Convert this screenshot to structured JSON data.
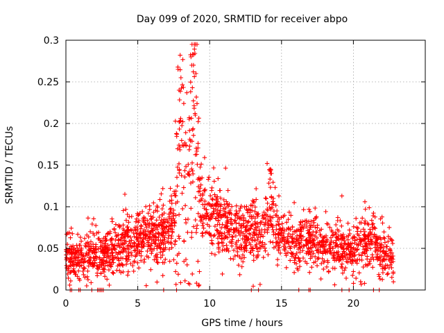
{
  "chart_data": {
    "type": "scatter",
    "title": "Day 099 of 2020, SRMTID for receiver abpo",
    "xlabel": "GPS time / hours",
    "ylabel": "SRMTID / TECUs",
    "xlim": [
      0,
      25
    ],
    "ylim": [
      0,
      0.3
    ],
    "xticks": [
      0,
      5,
      10,
      15,
      20
    ],
    "xtick_labels": [
      "0",
      "5",
      "10",
      "15",
      "20"
    ],
    "yticks": [
      0,
      0.05,
      0.1,
      0.15,
      0.2,
      0.25,
      0.3
    ],
    "ytick_labels": [
      "0",
      "0.05",
      "0.1",
      "0.15",
      "0.2",
      "0.25",
      "0.3"
    ],
    "grid": true,
    "marker": "+",
    "color": "#ff0000",
    "x_max_data": 22.8,
    "series": [
      {
        "name": "SRMTID",
        "trend": [
          [
            0.0,
            0.04
          ],
          [
            0.5,
            0.035
          ],
          [
            1.0,
            0.038
          ],
          [
            1.5,
            0.042
          ],
          [
            2.0,
            0.045
          ],
          [
            2.5,
            0.04
          ],
          [
            3.0,
            0.05
          ],
          [
            3.5,
            0.048
          ],
          [
            4.0,
            0.055
          ],
          [
            4.5,
            0.058
          ],
          [
            5.0,
            0.06
          ],
          [
            5.5,
            0.065
          ],
          [
            6.0,
            0.063
          ],
          [
            6.5,
            0.065
          ],
          [
            7.0,
            0.068
          ],
          [
            7.5,
            0.09
          ],
          [
            7.8,
            0.13
          ],
          [
            8.0,
            0.2
          ],
          [
            8.3,
            0.13
          ],
          [
            8.5,
            0.13
          ],
          [
            8.8,
            0.18
          ],
          [
            9.0,
            0.2
          ],
          [
            9.2,
            0.12
          ],
          [
            9.5,
            0.1
          ],
          [
            10.0,
            0.09
          ],
          [
            10.5,
            0.085
          ],
          [
            11.0,
            0.08
          ],
          [
            11.5,
            0.075
          ],
          [
            12.0,
            0.072
          ],
          [
            12.5,
            0.07
          ],
          [
            13.0,
            0.075
          ],
          [
            13.5,
            0.072
          ],
          [
            14.0,
            0.08
          ],
          [
            14.2,
            0.1
          ],
          [
            14.5,
            0.075
          ],
          [
            15.0,
            0.065
          ],
          [
            15.5,
            0.06
          ],
          [
            16.0,
            0.06
          ],
          [
            16.5,
            0.062
          ],
          [
            17.0,
            0.06
          ],
          [
            17.5,
            0.058
          ],
          [
            18.0,
            0.05
          ],
          [
            18.5,
            0.048
          ],
          [
            19.0,
            0.05
          ],
          [
            19.5,
            0.05
          ],
          [
            20.0,
            0.048
          ],
          [
            20.5,
            0.055
          ],
          [
            21.0,
            0.06
          ],
          [
            21.5,
            0.055
          ],
          [
            22.0,
            0.045
          ],
          [
            22.5,
            0.04
          ],
          [
            22.8,
            0.03
          ]
        ],
        "spread": 0.022,
        "n_points": 2100,
        "peaks": [
          {
            "x": 7.95,
            "y": 0.282
          },
          {
            "x": 8.7,
            "y": 0.28
          },
          {
            "x": 8.75,
            "y": 0.27
          },
          {
            "x": 8.8,
            "y": 0.243
          },
          {
            "x": 7.8,
            "y": 0.265
          },
          {
            "x": 8.0,
            "y": 0.255
          },
          {
            "x": 9.0,
            "y": 0.21
          },
          {
            "x": 14.0,
            "y": 0.152
          },
          {
            "x": 14.3,
            "y": 0.14
          },
          {
            "x": 4.1,
            "y": 0.115
          },
          {
            "x": 19.2,
            "y": 0.113
          },
          {
            "x": 20.8,
            "y": 0.106
          }
        ],
        "zero_points_x": [
          0.3,
          0.4,
          0.9,
          1.0,
          1.8,
          2.2,
          2.3,
          2.4,
          2.5,
          2.6,
          6.8,
          7.7,
          12.9,
          13.4,
          16.2,
          16.9,
          17.0,
          19.2,
          19.7,
          21.4,
          21.8
        ]
      }
    ]
  }
}
